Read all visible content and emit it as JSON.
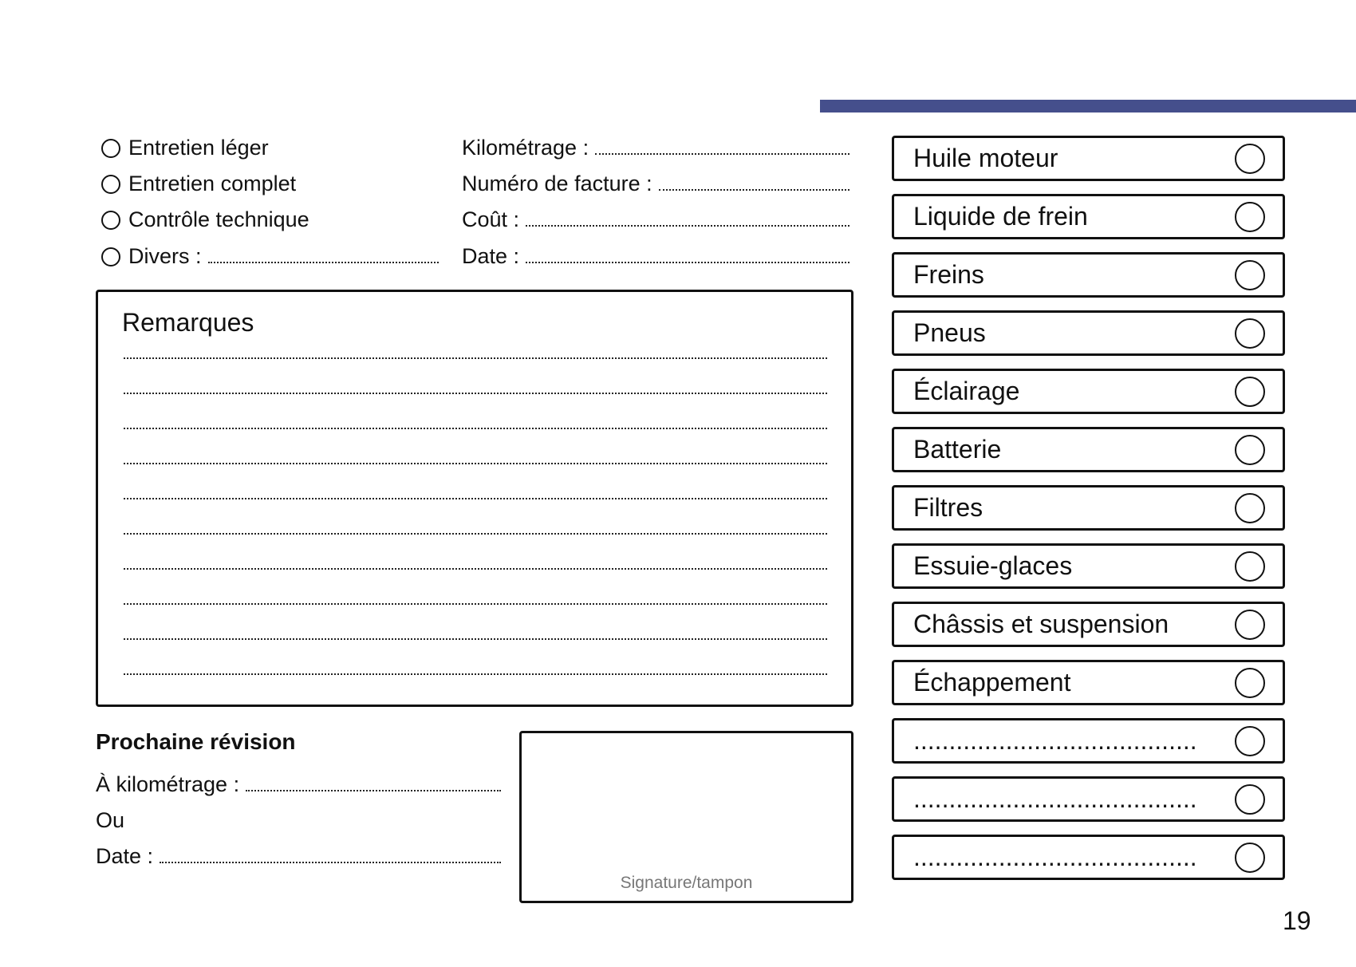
{
  "colors": {
    "accent_bar": "#454f8c"
  },
  "service_types": [
    {
      "label": "Entretien léger",
      "fill_line": false
    },
    {
      "label": "Entretien complet",
      "fill_line": false
    },
    {
      "label": "Contrôle technique",
      "fill_line": false
    },
    {
      "label": "Divers :",
      "fill_line": true
    }
  ],
  "fields": [
    {
      "label": "Kilométrage :"
    },
    {
      "label": "Numéro de facture :"
    },
    {
      "label": "Coût :"
    },
    {
      "label": "Date :"
    }
  ],
  "remarks": {
    "title": "Remarques",
    "line_count": 10
  },
  "next_service": {
    "title": "Prochaine révision",
    "km_label": "À kilométrage :",
    "or_label": "Ou",
    "date_label": "Date :"
  },
  "signature": {
    "caption": "Signature/tampon"
  },
  "checklist": [
    "Huile moteur",
    "Liquide de frein",
    "Freins",
    "Pneus",
    "Éclairage",
    "Batterie",
    "Filtres",
    "Essuie-glaces",
    "Châssis et suspension",
    "Échappement",
    "........................................",
    "........................................",
    "........................................"
  ],
  "page_number": "19"
}
